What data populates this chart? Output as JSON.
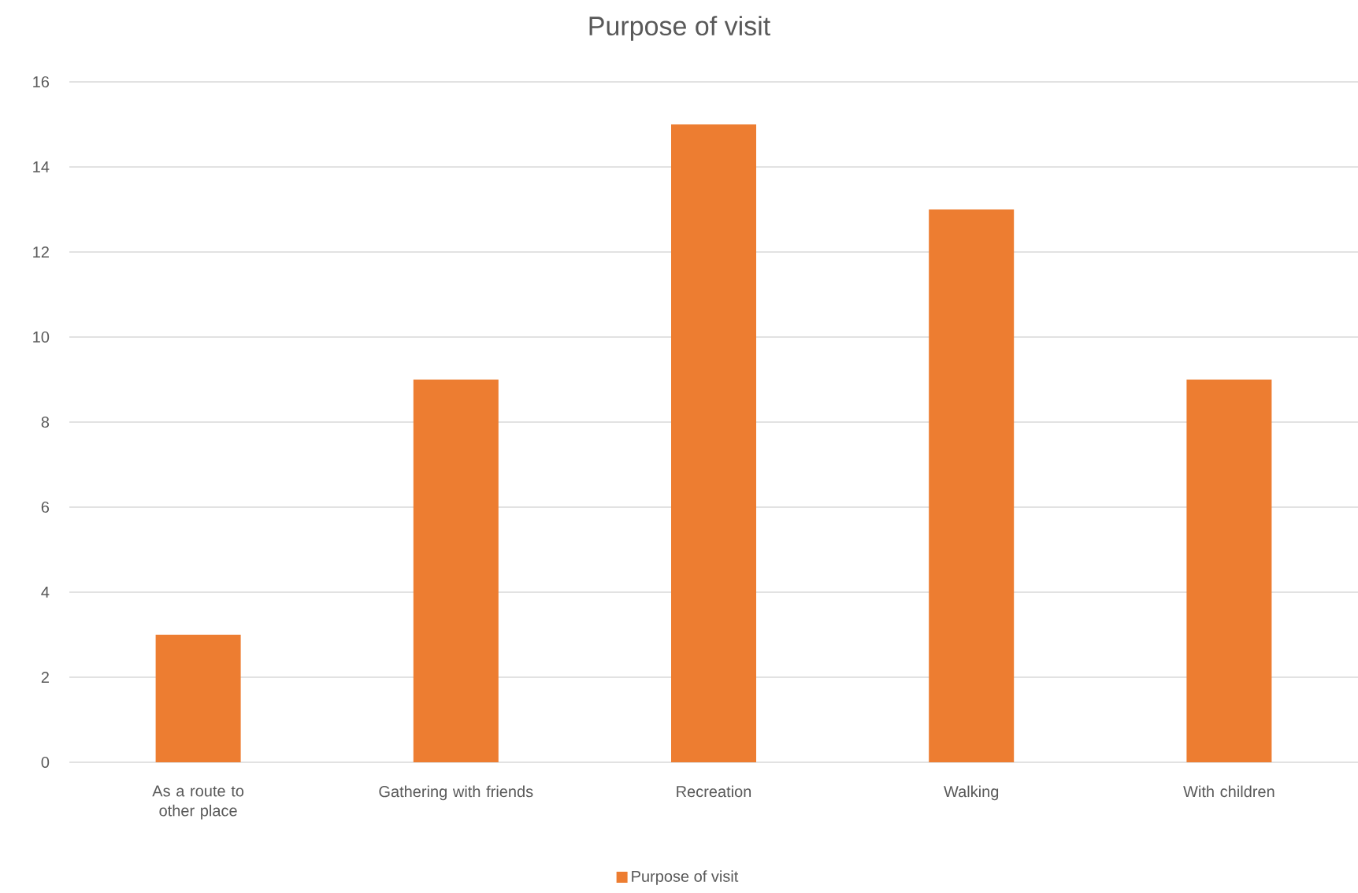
{
  "chart_data": {
    "type": "bar",
    "title": "Purpose of visit",
    "categories": [
      "As a route to other place",
      "Gathering with friends",
      "Recreation",
      "Walking",
      "With children"
    ],
    "series": [
      {
        "name": "Purpose of visit",
        "color": "#ed7d31",
        "values": [
          3,
          9,
          15,
          13,
          9
        ]
      }
    ],
    "ylim": [
      0,
      16
    ],
    "yticks": [
      0,
      2,
      4,
      6,
      8,
      10,
      12,
      14,
      16
    ],
    "grid": "y",
    "legend": "bottom"
  }
}
